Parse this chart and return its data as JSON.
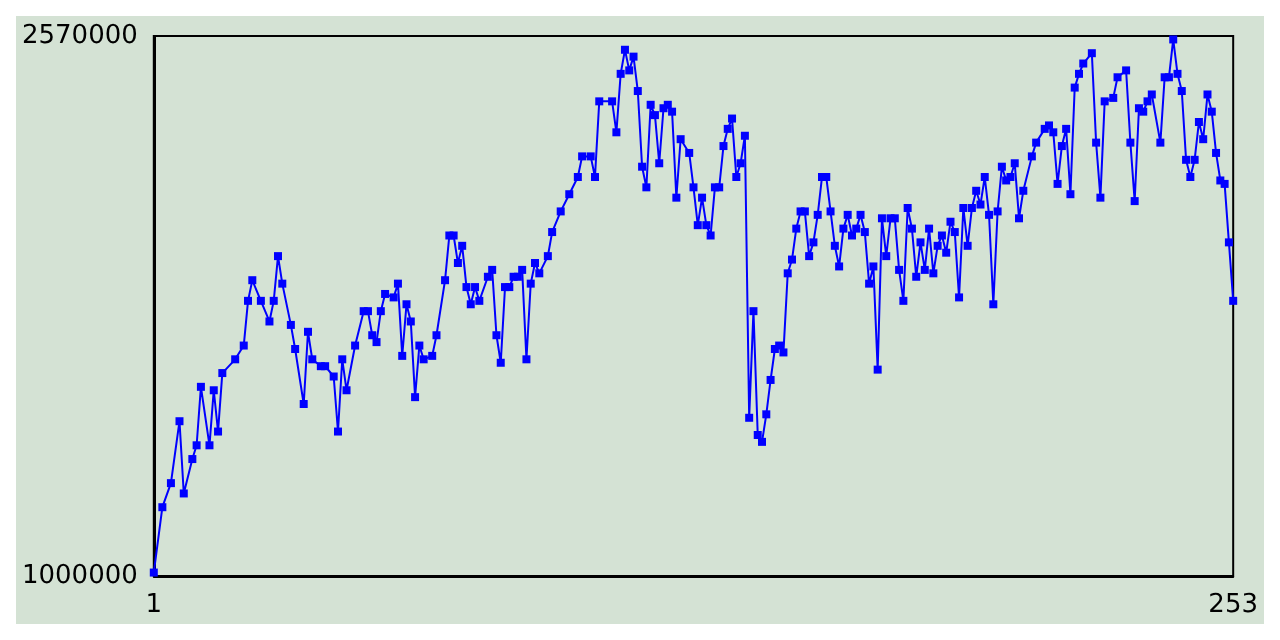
{
  "chart_data": {
    "type": "line",
    "x": [
      1,
      3,
      5,
      7,
      8,
      10,
      11,
      12,
      14,
      15,
      16,
      17,
      20,
      22,
      23,
      24,
      26,
      28,
      29,
      30,
      31,
      33,
      34,
      36,
      37,
      38,
      40,
      41,
      43,
      44,
      45,
      46,
      48,
      50,
      51,
      52,
      53,
      54,
      55,
      57,
      58,
      59,
      60,
      61,
      62,
      63,
      64,
      66,
      67,
      69,
      70,
      71,
      72,
      73,
      74,
      75,
      76,
      77,
      79,
      80,
      81,
      82,
      83,
      84,
      85,
      86,
      87,
      88,
      89,
      90,
      91,
      93,
      94,
      96,
      98,
      100,
      101,
      103,
      104,
      105,
      108,
      109,
      110,
      111,
      112,
      113,
      114,
      115,
      116,
      117,
      118,
      119,
      120,
      121,
      122,
      123,
      124,
      126,
      127,
      128,
      129,
      130,
      131,
      132,
      133,
      134,
      135,
      136,
      137,
      138,
      139,
      140,
      141,
      142,
      143,
      144,
      145,
      146,
      147,
      148,
      149,
      150,
      151,
      152,
      153,
      154,
      155,
      156,
      157,
      158,
      159,
      160,
      161,
      162,
      163,
      164,
      165,
      166,
      167,
      168,
      169,
      170,
      171,
      172,
      173,
      174,
      175,
      176,
      177,
      178,
      179,
      180,
      181,
      182,
      183,
      184,
      185,
      186,
      187,
      188,
      189,
      190,
      191,
      192,
      193,
      194,
      195,
      196,
      197,
      198,
      199,
      200,
      201,
      202,
      203,
      204,
      206,
      207,
      209,
      210,
      211,
      212,
      213,
      214,
      215,
      216,
      217,
      218,
      220,
      221,
      222,
      223,
      225,
      226,
      228,
      229,
      230,
      231,
      232,
      233,
      234,
      236,
      237,
      238,
      239,
      240,
      241,
      242,
      243,
      244,
      245,
      246,
      247,
      248,
      249,
      250,
      251,
      252,
      253
    ],
    "series": [
      {
        "color": "#0000ff",
        "values": [
          1010000,
          1200000,
          1270000,
          1450000,
          1240000,
          1340000,
          1380000,
          1550000,
          1380000,
          1540000,
          1420000,
          1590000,
          1630000,
          1670000,
          1800000,
          1860000,
          1800000,
          1740000,
          1800000,
          1930000,
          1850000,
          1730000,
          1660000,
          1500000,
          1710000,
          1630000,
          1610000,
          1610000,
          1580000,
          1420000,
          1630000,
          1540000,
          1670000,
          1770000,
          1770000,
          1700000,
          1680000,
          1770000,
          1820000,
          1810000,
          1850000,
          1640000,
          1790000,
          1740000,
          1520000,
          1670000,
          1630000,
          1640000,
          1700000,
          1860000,
          1990000,
          1990000,
          1910000,
          1960000,
          1840000,
          1790000,
          1840000,
          1800000,
          1870000,
          1890000,
          1700000,
          1620000,
          1840000,
          1840000,
          1870000,
          1870000,
          1890000,
          1630000,
          1850000,
          1910000,
          1880000,
          1930000,
          2000000,
          2060000,
          2110000,
          2160000,
          2220000,
          2220000,
          2160000,
          2380000,
          2380000,
          2290000,
          2460000,
          2530000,
          2470000,
          2510000,
          2410000,
          2190000,
          2130000,
          2370000,
          2340000,
          2200000,
          2360000,
          2370000,
          2350000,
          2100000,
          2270000,
          2230000,
          2130000,
          2020000,
          2100000,
          2020000,
          1990000,
          2130000,
          2130000,
          2250000,
          2300000,
          2330000,
          2160000,
          2200000,
          2280000,
          1460000,
          1770000,
          1410000,
          1390000,
          1470000,
          1570000,
          1660000,
          1670000,
          1650000,
          1880000,
          1920000,
          2010000,
          2060000,
          2060000,
          1930000,
          1970000,
          2050000,
          2160000,
          2160000,
          2060000,
          1960000,
          1900000,
          2010000,
          2050000,
          1990000,
          2010000,
          2050000,
          2000000,
          1850000,
          1900000,
          1600000,
          2040000,
          1930000,
          2040000,
          2040000,
          1890000,
          1800000,
          2070000,
          2010000,
          1870000,
          1970000,
          1890000,
          2010000,
          1880000,
          1960000,
          1990000,
          1940000,
          2030000,
          2000000,
          1810000,
          2070000,
          1960000,
          2070000,
          2120000,
          2080000,
          2160000,
          2050000,
          1790000,
          2060000,
          2190000,
          2150000,
          2160000,
          2200000,
          2040000,
          2120000,
          2220000,
          2260000,
          2300000,
          2310000,
          2290000,
          2140000,
          2250000,
          2300000,
          2110000,
          2420000,
          2460000,
          2490000,
          2520000,
          2260000,
          2100000,
          2380000,
          2390000,
          2450000,
          2470000,
          2260000,
          2090000,
          2360000,
          2350000,
          2380000,
          2400000,
          2260000,
          2450000,
          2450000,
          2560000,
          2460000,
          2410000,
          2210000,
          2160000,
          2210000,
          2320000,
          2270000,
          2400000,
          2350000,
          2230000,
          2150000,
          2140000,
          1970000,
          1800000
        ]
      }
    ],
    "xlim": [
      1,
      253
    ],
    "xticks": [
      1,
      253
    ],
    "ylim": [
      1000000,
      2570000
    ],
    "yticks": [
      1000000,
      2570000
    ],
    "grid": false,
    "marker": "square",
    "line_style": "solid"
  }
}
